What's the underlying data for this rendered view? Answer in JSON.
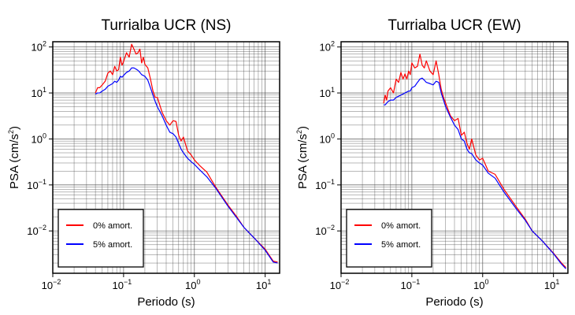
{
  "chart_data": [
    {
      "type": "line",
      "title": "Turrialba UCR (NS)",
      "xlabel": "Periodo (s)",
      "ylabel": "PSA (cm/s",
      "ylabel_sup": "2",
      "ylabel_end": ")",
      "xscale": "log",
      "yscale": "log",
      "xlim": [
        0.01,
        16
      ],
      "ylim": [
        0.0012,
        130
      ],
      "grid": true,
      "legend_position": "bottom-left",
      "x_ticks": [
        {
          "base": "10",
          "exp": "−2"
        },
        {
          "base": "10",
          "exp": "−1"
        },
        {
          "base": "10",
          "exp": "0"
        },
        {
          "base": "10",
          "exp": "1"
        }
      ],
      "y_ticks": [
        {
          "base": "10",
          "exp": "−2"
        },
        {
          "base": "10",
          "exp": "−1"
        },
        {
          "base": "10",
          "exp": "0"
        },
        {
          "base": "10",
          "exp": "1"
        },
        {
          "base": "10",
          "exp": "2"
        }
      ],
      "series": [
        {
          "name": "0% amort.",
          "color": "#ff0000",
          "x": [
            0.04,
            0.043,
            0.046,
            0.05,
            0.055,
            0.06,
            0.065,
            0.07,
            0.075,
            0.08,
            0.085,
            0.09,
            0.095,
            0.1,
            0.11,
            0.12,
            0.13,
            0.14,
            0.15,
            0.16,
            0.17,
            0.18,
            0.19,
            0.2,
            0.22,
            0.24,
            0.26,
            0.28,
            0.3,
            0.35,
            0.4,
            0.45,
            0.5,
            0.55,
            0.6,
            0.65,
            0.7,
            0.8,
            0.9,
            1.0,
            1.2,
            1.5,
            2.0,
            3.0,
            4.0,
            5.0,
            7.0,
            10.0,
            13.0,
            15.0
          ],
          "y": [
            10,
            13,
            13,
            15,
            18,
            27,
            30,
            25,
            38,
            30,
            32,
            60,
            40,
            48,
            75,
            60,
            115,
            90,
            70,
            75,
            90,
            45,
            60,
            42,
            35,
            20,
            11,
            8,
            8,
            3.8,
            2.5,
            2.0,
            2.5,
            2.4,
            1.2,
            0.9,
            1.1,
            0.55,
            0.45,
            0.35,
            0.26,
            0.19,
            0.09,
            0.036,
            0.02,
            0.012,
            0.007,
            0.004,
            0.0022,
            0.0021
          ]
        },
        {
          "name": "5% amort.",
          "color": "#0000ff",
          "x": [
            0.04,
            0.043,
            0.046,
            0.05,
            0.055,
            0.06,
            0.065,
            0.07,
            0.075,
            0.08,
            0.085,
            0.09,
            0.095,
            0.1,
            0.11,
            0.12,
            0.13,
            0.14,
            0.15,
            0.16,
            0.17,
            0.18,
            0.19,
            0.2,
            0.22,
            0.24,
            0.26,
            0.28,
            0.3,
            0.35,
            0.4,
            0.45,
            0.5,
            0.55,
            0.6,
            0.65,
            0.7,
            0.8,
            0.9,
            1.0,
            1.2,
            1.5,
            2.0,
            3.0,
            4.0,
            5.0,
            7.0,
            10.0,
            13.0,
            15.0
          ],
          "y": [
            9.5,
            10,
            10,
            11,
            12,
            14,
            15,
            16,
            18,
            17,
            19,
            23,
            22,
            24,
            28,
            30,
            35,
            35,
            33,
            31,
            28,
            25,
            24,
            23,
            19,
            13,
            9,
            6.5,
            5,
            3.2,
            2.0,
            1.4,
            1.3,
            1.1,
            0.8,
            0.6,
            0.5,
            0.38,
            0.32,
            0.28,
            0.21,
            0.15,
            0.085,
            0.034,
            0.019,
            0.012,
            0.007,
            0.0038,
            0.0021,
            0.002
          ]
        }
      ]
    },
    {
      "type": "line",
      "title": "Turrialba UCR (EW)",
      "xlabel": "Periodo (s)",
      "ylabel": "PSA (cm/s",
      "ylabel_sup": "2",
      "ylabel_end": ")",
      "xscale": "log",
      "yscale": "log",
      "xlim": [
        0.01,
        16
      ],
      "ylim": [
        0.0012,
        130
      ],
      "grid": true,
      "legend_position": "bottom-left",
      "x_ticks": [
        {
          "base": "10",
          "exp": "−2"
        },
        {
          "base": "10",
          "exp": "−1"
        },
        {
          "base": "10",
          "exp": "0"
        },
        {
          "base": "10",
          "exp": "1"
        }
      ],
      "y_ticks": [
        {
          "base": "10",
          "exp": "−2"
        },
        {
          "base": "10",
          "exp": "−1"
        },
        {
          "base": "10",
          "exp": "0"
        },
        {
          "base": "10",
          "exp": "1"
        },
        {
          "base": "10",
          "exp": "2"
        }
      ],
      "series": [
        {
          "name": "0% amort.",
          "color": "#ff0000",
          "x": [
            0.04,
            0.042,
            0.044,
            0.046,
            0.05,
            0.055,
            0.06,
            0.065,
            0.07,
            0.075,
            0.08,
            0.085,
            0.09,
            0.095,
            0.1,
            0.11,
            0.12,
            0.13,
            0.14,
            0.15,
            0.16,
            0.18,
            0.2,
            0.22,
            0.24,
            0.26,
            0.28,
            0.3,
            0.35,
            0.4,
            0.45,
            0.5,
            0.55,
            0.6,
            0.65,
            0.7,
            0.8,
            0.9,
            1.0,
            1.2,
            1.5,
            2.0,
            3.0,
            4.0,
            5.0,
            7.0,
            10.0,
            13.0,
            15.0
          ],
          "y": [
            6,
            9,
            7,
            11,
            13,
            10,
            20,
            17,
            28,
            20,
            26,
            20,
            30,
            25,
            45,
            35,
            38,
            70,
            40,
            35,
            50,
            30,
            25,
            50,
            25,
            12,
            8,
            6,
            3.2,
            2.5,
            2.8,
            1.2,
            1.4,
            0.8,
            0.6,
            1.0,
            0.45,
            0.35,
            0.38,
            0.2,
            0.17,
            0.08,
            0.033,
            0.018,
            0.01,
            0.006,
            0.0033,
            0.002,
            0.0016
          ]
        },
        {
          "name": "5% amort.",
          "color": "#0000ff",
          "x": [
            0.04,
            0.042,
            0.044,
            0.046,
            0.05,
            0.055,
            0.06,
            0.065,
            0.07,
            0.075,
            0.08,
            0.085,
            0.09,
            0.095,
            0.1,
            0.11,
            0.12,
            0.13,
            0.14,
            0.15,
            0.16,
            0.18,
            0.2,
            0.22,
            0.24,
            0.26,
            0.28,
            0.3,
            0.35,
            0.4,
            0.45,
            0.5,
            0.55,
            0.6,
            0.65,
            0.7,
            0.8,
            0.9,
            1.0,
            1.2,
            1.5,
            2.0,
            3.0,
            4.0,
            5.0,
            7.0,
            10.0,
            13.0,
            15.0
          ],
          "y": [
            5.5,
            5.5,
            6,
            6.5,
            7,
            7,
            8,
            8.5,
            9,
            9.5,
            10,
            10.5,
            11,
            11,
            13,
            14,
            17,
            20,
            21,
            19,
            17,
            16,
            15,
            18,
            17,
            10,
            7,
            5,
            3.0,
            2.0,
            1.6,
            1.0,
            0.9,
            0.6,
            0.5,
            0.48,
            0.35,
            0.3,
            0.27,
            0.18,
            0.14,
            0.07,
            0.03,
            0.017,
            0.01,
            0.006,
            0.0032,
            0.0019,
            0.0015
          ]
        }
      ]
    }
  ]
}
